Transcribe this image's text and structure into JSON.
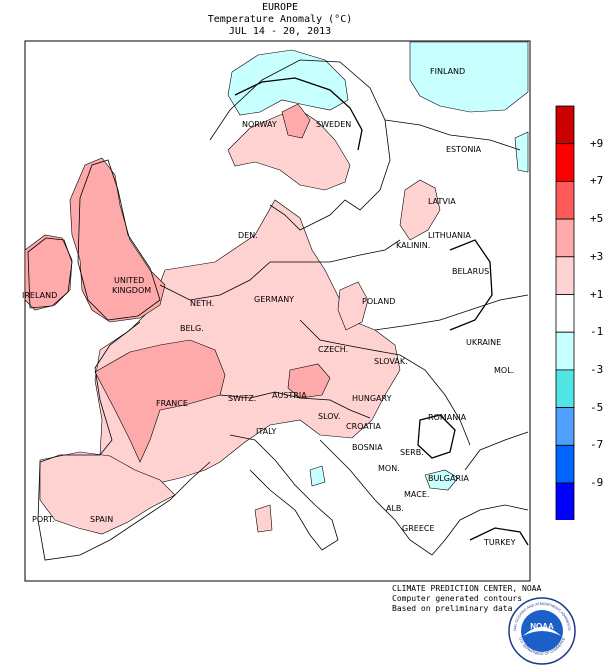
{
  "header": {
    "region": "EUROPE",
    "title": "Temperature Anomaly (°C)",
    "period": "JUL 14 - 20, 2013"
  },
  "credits": {
    "org": "CLIMATE PREDICTION CENTER, NOAA",
    "line1": "Computer generated contours",
    "line2": "Based on preliminary data"
  },
  "logo": {
    "text": "NOAA",
    "ring_top": "NATIONAL OCEANIC AND ATMOSPHERIC ADMINISTRATION",
    "ring_bottom": "U.S. DEPARTMENT OF COMMERCE"
  },
  "scale": {
    "labels": [
      "+9",
      "+7",
      "+5",
      "+3",
      "+1",
      "-1",
      "-3",
      "-5",
      "-7",
      "-9"
    ],
    "colors": [
      "#cc0000",
      "#ff0000",
      "#ff5a5a",
      "#ffaaaa",
      "#ffd2d2",
      "#ffffff",
      "#c8ffff",
      "#50e6e6",
      "#50a0ff",
      "#0064ff",
      "#0000ff"
    ]
  },
  "countries": [
    {
      "name": "FINLAND"
    },
    {
      "name": "NORWAY"
    },
    {
      "name": "SWEDEN"
    },
    {
      "name": "ESTONIA"
    },
    {
      "name": "LATVIA"
    },
    {
      "name": "DEN."
    },
    {
      "name": "LITHUANIA"
    },
    {
      "name": "KALININ."
    },
    {
      "name": "BELARUS"
    },
    {
      "name": "UNITED"
    },
    {
      "name": "KINGDOM"
    },
    {
      "name": "IRELAND"
    },
    {
      "name": "NETH."
    },
    {
      "name": "GERMANY"
    },
    {
      "name": "POLAND"
    },
    {
      "name": "BELG."
    },
    {
      "name": "UKRAINE"
    },
    {
      "name": "CZECH."
    },
    {
      "name": "SLOVAK."
    },
    {
      "name": "MOL."
    },
    {
      "name": "FRANCE"
    },
    {
      "name": "SWITZ."
    },
    {
      "name": "AUSTRIA"
    },
    {
      "name": "HUNGARY"
    },
    {
      "name": "SLOV."
    },
    {
      "name": "ROMANIA"
    },
    {
      "name": "CROATIA"
    },
    {
      "name": "ITALY"
    },
    {
      "name": "BOSNIA"
    },
    {
      "name": "SERB."
    },
    {
      "name": "MON."
    },
    {
      "name": "BULGARIA"
    },
    {
      "name": "MACE."
    },
    {
      "name": "PORT."
    },
    {
      "name": "SPAIN"
    },
    {
      "name": "ALB."
    },
    {
      "name": "GREECE"
    },
    {
      "name": "TURKEY"
    }
  ]
}
